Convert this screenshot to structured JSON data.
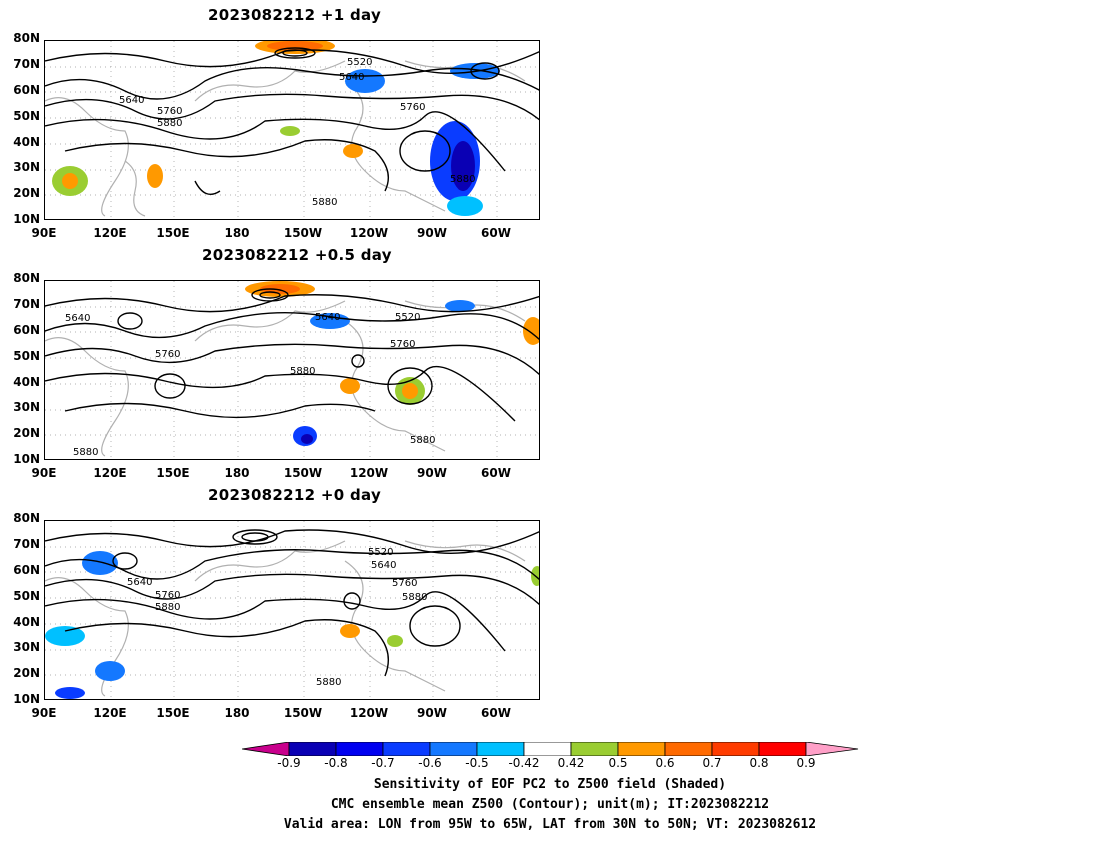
{
  "panels": [
    {
      "title": "2023082212  +1 day",
      "contour_labels": [
        "5520",
        "5640",
        "5640",
        "5760",
        "5760",
        "5880",
        "5880",
        "5880"
      ]
    },
    {
      "title": "2023082212  +0.5 day",
      "contour_labels": [
        "5640",
        "5640",
        "5520",
        "5760",
        "5760",
        "5880",
        "5880",
        "5880"
      ]
    },
    {
      "title": "2023082212  +0 day",
      "contour_labels": [
        "5520",
        "5640",
        "5640",
        "5760",
        "5760",
        "5880",
        "5880",
        "5880"
      ]
    }
  ],
  "lat_ticks": [
    "80N",
    "70N",
    "60N",
    "50N",
    "40N",
    "30N",
    "20N",
    "10N"
  ],
  "lon_ticks": [
    "90E",
    "120E",
    "150E",
    "180",
    "150W",
    "120W",
    "90W",
    "60W"
  ],
  "colorbar": {
    "labels": [
      "-0.9",
      "-0.8",
      "-0.7",
      "-0.6",
      "-0.5",
      "-0.42",
      "0.42",
      "0.5",
      "0.6",
      "0.7",
      "0.8",
      "0.9"
    ],
    "colors": [
      "#c8008c",
      "#0a00b4",
      "#0000f0",
      "#0a3cff",
      "#1478ff",
      "#00c0ff",
      "#ffffff",
      "#9acd32",
      "#ff9900",
      "#ff6a00",
      "#ff3c00",
      "#ff0000",
      "#ffa0c8"
    ]
  },
  "caption": {
    "line1": "Sensitivity of EOF PC2 to Z500 field (Shaded)",
    "line2": "CMC ensemble mean Z500 (Contour); unit(m); IT:2023082212",
    "line3": "Valid area: LON from 95W to 65W, LAT from 30N to 50N; VT: 2023082612"
  }
}
